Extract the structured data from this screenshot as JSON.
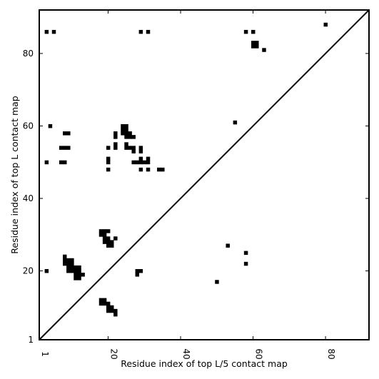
{
  "chart_data": {
    "type": "heatmap",
    "title": "",
    "xlabel": "Residue index of top L/5 contact map",
    "ylabel": "Residue index of top L contact map",
    "xlim": [
      1,
      92
    ],
    "ylim": [
      1,
      92
    ],
    "xticks": [
      1,
      20,
      40,
      60,
      80
    ],
    "yticks": [
      1,
      20,
      40,
      60,
      80
    ],
    "grid": false,
    "diagonal": true,
    "cell_color": "#000000",
    "background_color": "#ffffff",
    "lower_cells": [
      [
        53,
        27
      ],
      [
        58,
        25
      ],
      [
        58,
        22
      ],
      [
        55,
        61
      ],
      [
        28,
        20
      ],
      [
        28,
        19
      ],
      [
        29,
        20
      ],
      [
        50,
        17
      ]
    ],
    "upper_cells": [
      [
        3,
        86
      ],
      [
        5,
        86
      ],
      [
        29,
        86
      ],
      [
        31,
        86
      ],
      [
        58,
        86
      ],
      [
        60,
        86
      ],
      [
        80,
        88
      ],
      [
        60,
        83
      ],
      [
        61,
        83
      ],
      [
        60,
        82
      ],
      [
        61,
        82
      ],
      [
        63,
        81
      ],
      [
        4,
        60
      ],
      [
        8,
        58
      ],
      [
        9,
        58
      ],
      [
        7,
        54
      ],
      [
        8,
        54
      ],
      [
        9,
        54
      ],
      [
        3,
        50
      ],
      [
        7,
        50
      ],
      [
        8,
        50
      ],
      [
        24,
        60
      ],
      [
        25,
        60
      ],
      [
        24,
        59
      ],
      [
        25,
        59
      ],
      [
        24,
        58
      ],
      [
        25,
        58
      ],
      [
        26,
        58
      ],
      [
        22,
        58
      ],
      [
        22,
        57
      ],
      [
        25,
        57
      ],
      [
        26,
        57
      ],
      [
        27,
        57
      ],
      [
        22,
        55
      ],
      [
        22,
        54
      ],
      [
        25,
        55
      ],
      [
        25,
        54
      ],
      [
        26,
        54
      ],
      [
        27,
        54
      ],
      [
        27,
        53
      ],
      [
        20,
        54
      ],
      [
        29,
        54
      ],
      [
        29,
        53
      ],
      [
        20,
        51
      ],
      [
        20,
        50
      ],
      [
        29,
        51
      ],
      [
        31,
        51
      ],
      [
        27,
        50
      ],
      [
        28,
        50
      ],
      [
        29,
        50
      ],
      [
        30,
        50
      ],
      [
        31,
        50
      ],
      [
        20,
        48
      ],
      [
        29,
        48
      ],
      [
        31,
        48
      ],
      [
        34,
        48
      ],
      [
        35,
        48
      ]
    ],
    "blobs": [
      [
        [
          18,
          31
        ],
        [
          19,
          31
        ],
        [
          20,
          31
        ],
        [
          18,
          30
        ],
        [
          19,
          30
        ],
        [
          19,
          29
        ],
        [
          20,
          29
        ],
        [
          22,
          29
        ],
        [
          19,
          28
        ],
        [
          20,
          28
        ],
        [
          21,
          28
        ],
        [
          20,
          27
        ],
        [
          21,
          27
        ]
      ],
      [
        [
          8,
          24
        ],
        [
          8,
          23
        ],
        [
          9,
          23
        ],
        [
          10,
          23
        ],
        [
          8,
          22
        ],
        [
          9,
          22
        ],
        [
          10,
          22
        ],
        [
          9,
          21
        ],
        [
          10,
          21
        ],
        [
          11,
          21
        ],
        [
          12,
          21
        ],
        [
          9,
          20
        ],
        [
          10,
          20
        ],
        [
          11,
          20
        ],
        [
          12,
          20
        ],
        [
          11,
          19
        ],
        [
          12,
          19
        ],
        [
          13,
          19
        ],
        [
          11,
          18
        ],
        [
          12,
          18
        ]
      ],
      [
        [
          18,
          12
        ],
        [
          19,
          12
        ],
        [
          18,
          11
        ],
        [
          19,
          11
        ],
        [
          20,
          11
        ],
        [
          20,
          10
        ],
        [
          21,
          10
        ],
        [
          20,
          9
        ],
        [
          21,
          9
        ],
        [
          22,
          9
        ],
        [
          22,
          8
        ]
      ]
    ],
    "isolated": [
      [
        3,
        20
      ]
    ]
  }
}
